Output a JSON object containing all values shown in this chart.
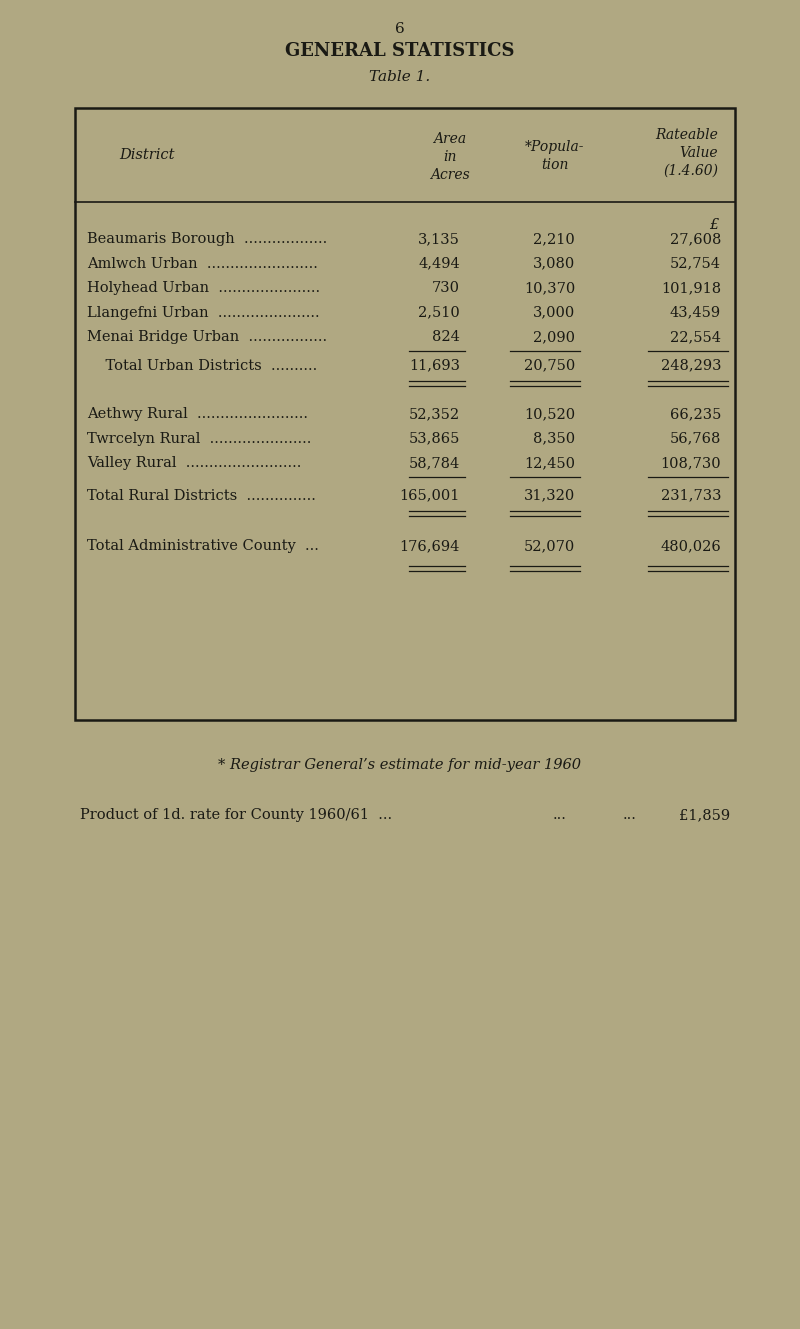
{
  "page_number": "6",
  "title": "GENERAL STATISTICS",
  "subtitle": "Table 1.",
  "bg_color": "#b0a882",
  "text_color": "#1a1a14",
  "rows": [
    {
      "district": "Beaumaris Borough  ..................",
      "area": "3,135",
      "pop": "2,210",
      "rv": "27,608",
      "indent": false,
      "sep_before": false,
      "sep_after": false
    },
    {
      "district": "Amlwch Urban  ........................",
      "area": "4,494",
      "pop": "3,080",
      "rv": "52,754",
      "indent": false,
      "sep_before": false,
      "sep_after": false
    },
    {
      "district": "Holyhead Urban  ......................",
      "area": "730",
      "pop": "10,370",
      "rv": "101,918",
      "indent": false,
      "sep_before": false,
      "sep_after": false
    },
    {
      "district": "Llangefni Urban  ......................",
      "area": "2,510",
      "pop": "3,000",
      "rv": "43,459",
      "indent": false,
      "sep_before": false,
      "sep_after": false
    },
    {
      "district": "Menai Bridge Urban  .................",
      "area": "824",
      "pop": "2,090",
      "rv": "22,554",
      "indent": false,
      "sep_before": false,
      "sep_after": true
    },
    {
      "district": "    Total Urban Districts  ..........",
      "area": "11,693",
      "pop": "20,750",
      "rv": "248,293",
      "indent": true,
      "sep_before": false,
      "sep_after": true
    },
    {
      "district": "Aethwy Rural  ........................",
      "area": "52,352",
      "pop": "10,520",
      "rv": "66,235",
      "indent": false,
      "sep_before": false,
      "sep_after": false
    },
    {
      "district": "Twrcelyn Rural  ......................",
      "area": "53,865",
      "pop": "8,350",
      "rv": "56,768",
      "indent": false,
      "sep_before": false,
      "sep_after": false
    },
    {
      "district": "Valley Rural  .........................",
      "area": "58,784",
      "pop": "12,450",
      "rv": "108,730",
      "indent": false,
      "sep_before": false,
      "sep_after": true
    },
    {
      "district": "Total Rural Districts  ...............",
      "area": "165,001",
      "pop": "31,320",
      "rv": "231,733",
      "indent": false,
      "sep_before": false,
      "sep_after": true
    },
    {
      "district": "Total Administrative County  ...",
      "area": "176,694",
      "pop": "52,070",
      "rv": "480,026",
      "indent": false,
      "sep_before": false,
      "sep_after": true
    }
  ],
  "footnote1": "* Registrar General’s estimate for mid-year 1960",
  "footnote2_a": "Product of 1d. rate for County 1960/61  ...",
  "footnote2_b": "...",
  "footnote2_c": "...",
  "footnote2_d": "£1,859"
}
